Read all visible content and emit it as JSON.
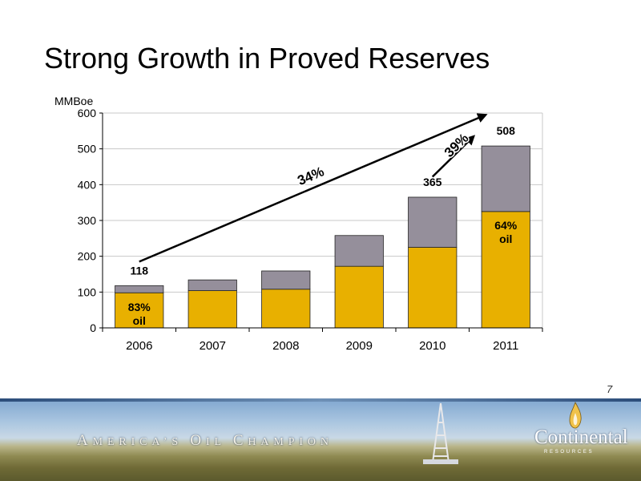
{
  "slide": {
    "title": "Strong Growth in Proved Reserves",
    "page_number": "7"
  },
  "banner": {
    "tagline_parts": [
      {
        "cap": "A",
        "rest": "merica’s"
      },
      {
        "cap": "O",
        "rest": "il"
      },
      {
        "cap": "C",
        "rest": "hampion"
      }
    ],
    "brand_name": "Continental",
    "brand_sub": "RESOURCES"
  },
  "colors": {
    "oil": "#E8B000",
    "gas": "#958F9B",
    "gridline": "#C8C8C8",
    "axis": "#000000"
  },
  "chart_data": {
    "type": "bar",
    "stacked": true,
    "ylabel": "MMBoe",
    "ylim": [
      0,
      600
    ],
    "yticks": [
      0,
      100,
      200,
      300,
      400,
      500,
      600
    ],
    "grid": true,
    "categories": [
      "2006",
      "2007",
      "2008",
      "2009",
      "2010",
      "2011"
    ],
    "series": [
      {
        "values": [
          98,
          104,
          108,
          172,
          225,
          325
        ]
      },
      {
        "values": [
          20,
          30,
          51,
          86,
          140,
          183
        ]
      }
    ],
    "totals": [
      118,
      134,
      159,
      258,
      365,
      508
    ],
    "data_labels": [
      {
        "category": "2006",
        "text": "118"
      },
      {
        "category": "2010",
        "text": "365"
      },
      {
        "category": "2011",
        "text": "508"
      }
    ],
    "bar_annotations": [
      {
        "category": "2006",
        "lines": [
          "83%",
          "oil"
        ]
      },
      {
        "category": "2011",
        "lines": [
          "64%",
          "oil"
        ]
      }
    ],
    "growth_arrows": [
      {
        "label": "34%",
        "from": {
          "category": "2006",
          "value": 185
        },
        "to": {
          "category": "2011",
          "value": 595
        }
      },
      {
        "label": "39%",
        "from": {
          "category": "2010",
          "value": 422
        },
        "to": {
          "category": "2011",
          "value": 535
        }
      }
    ]
  }
}
